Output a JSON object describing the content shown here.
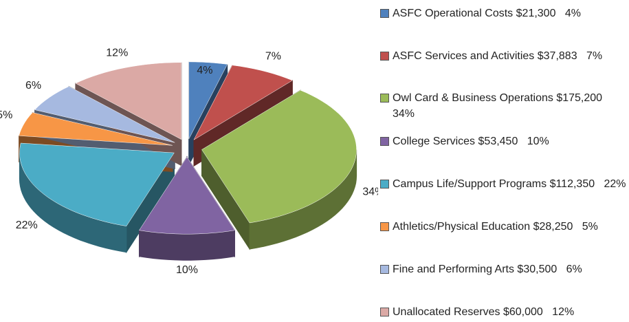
{
  "chart_data": {
    "type": "pie",
    "categories": [
      "ASFC Operational Costs",
      "ASFC Services and Activities",
      "Owl Card & Business Operations",
      "College Services",
      "Campus Life/Support Programs",
      "Athletics/Physical Education",
      "Fine and Performing Arts",
      "Unallocated Reserves"
    ],
    "amounts": [
      21300,
      37883,
      175200,
      53450,
      112350,
      28250,
      30500,
      60000
    ],
    "amount_labels": [
      "$21,300",
      "$37,883",
      "$175,200",
      "$53,450",
      "$112,350",
      "$28,250",
      "$30,500",
      "$60,000"
    ],
    "values": [
      4,
      7,
      34,
      10,
      22,
      5,
      6,
      12
    ],
    "value_labels": [
      "4%",
      "7%",
      "34%",
      "10%",
      "22%",
      "5%",
      "6%",
      "12%"
    ],
    "colors": [
      "#4f81bd",
      "#c0504d",
      "#9bbb59",
      "#8064a2",
      "#4bacc6",
      "#f79646",
      "#a6b9e0",
      "#dba9a5"
    ]
  }
}
